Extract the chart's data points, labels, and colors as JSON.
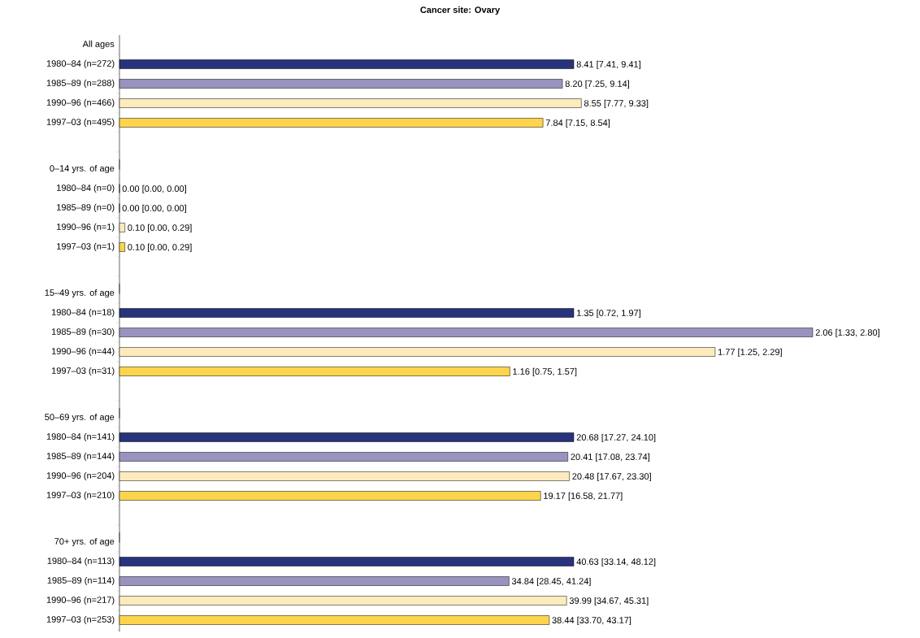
{
  "chart_data": [
    {
      "type": "bar",
      "orientation": "horizontal",
      "title": "Cancer site: Ovary",
      "subtitle": "All ages",
      "categories": [
        "1980–84 (n=272)",
        "1985–89 (n=288)",
        "1990–96 (n=466)",
        "1997–03 (n=495)"
      ],
      "values": [
        8.41,
        8.2,
        8.55,
        7.84
      ],
      "value_labels": [
        "8.41 [7.41, 9.41]",
        "8.20 [7.25, 9.14]",
        "8.55 [7.77, 9.33]",
        "7.84 [7.15, 8.54]"
      ],
      "colors": [
        "#27337a",
        "#9894bf",
        "#fdebbd",
        "#fdd44c"
      ]
    },
    {
      "type": "bar",
      "orientation": "horizontal",
      "subtitle": "0–14 yrs. of age",
      "categories": [
        "1980–84 (n=0)",
        "1985–89 (n=0)",
        "1990–96 (n=1)",
        "1997–03 (n=1)"
      ],
      "values": [
        0.0,
        0.0,
        0.1,
        0.1
      ],
      "value_labels": [
        "0.00 [0.00, 0.00]",
        "0.00 [0.00, 0.00]",
        "0.10 [0.00, 0.29]",
        "0.10 [0.00, 0.29]"
      ],
      "colors": [
        "#27337a",
        "#9894bf",
        "#fdebbd",
        "#fdd44c"
      ]
    },
    {
      "type": "bar",
      "orientation": "horizontal",
      "subtitle": "15–49 yrs. of age",
      "categories": [
        "1980–84 (n=18)",
        "1985–89 (n=30)",
        "1990–96 (n=44)",
        "1997–03 (n=31)"
      ],
      "values": [
        1.35,
        2.06,
        1.77,
        1.16
      ],
      "value_labels": [
        "1.35 [0.72, 1.97]",
        "2.06 [1.33, 2.80]",
        "1.77 [1.25, 2.29]",
        "1.16 [0.75, 1.57]"
      ],
      "colors": [
        "#27337a",
        "#9894bf",
        "#fdebbd",
        "#fdd44c"
      ]
    },
    {
      "type": "bar",
      "orientation": "horizontal",
      "subtitle": "50–69 yrs. of age",
      "categories": [
        "1980–84 (n=141)",
        "1985–89 (n=144)",
        "1990–96 (n=204)",
        "1997–03 (n=210)"
      ],
      "values": [
        20.68,
        20.41,
        20.48,
        19.17
      ],
      "value_labels": [
        "20.68 [17.27, 24.10]",
        "20.41 [17.08, 23.74]",
        "20.48 [17.67, 23.30]",
        "19.17 [16.58, 21.77]"
      ],
      "colors": [
        "#27337a",
        "#9894bf",
        "#fdebbd",
        "#fdd44c"
      ]
    },
    {
      "type": "bar",
      "orientation": "horizontal",
      "subtitle": "70+ yrs. of age",
      "categories": [
        "1980–84 (n=113)",
        "1985–89 (n=114)",
        "1990–96 (n=217)",
        "1997–03 (n=253)"
      ],
      "values": [
        40.63,
        34.84,
        39.99,
        38.44
      ],
      "value_labels": [
        "40.63 [33.14, 48.12]",
        "34.84 [28.45, 41.24]",
        "39.99 [34.67, 45.31]",
        "38.44 [33.70, 43.17]"
      ],
      "colors": [
        "#27337a",
        "#9894bf",
        "#fdebbd",
        "#fdd44c"
      ]
    }
  ]
}
